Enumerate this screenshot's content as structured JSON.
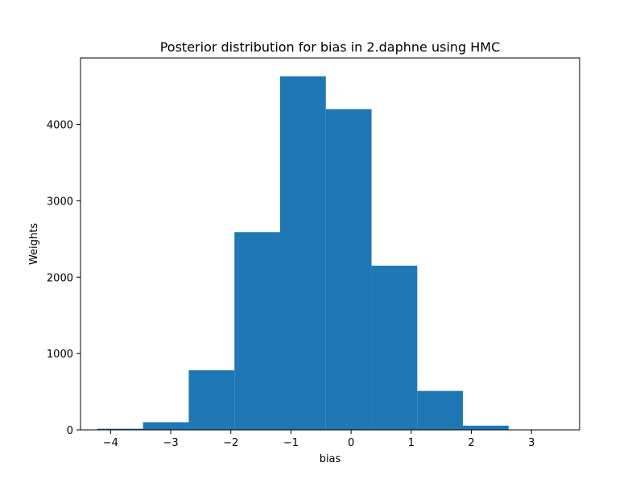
{
  "chart_data": {
    "type": "bar",
    "title": "Posterior distribution for bias in 2.daphne using HMC",
    "xlabel": "bias",
    "ylabel": "Weights",
    "bar_color": "#1f77b4",
    "xlim": [
      -4.5,
      3.8
    ],
    "ylim": [
      0,
      4870
    ],
    "grid": false,
    "bins": [
      {
        "x0": -4.22,
        "x1": -3.46,
        "value": 15
      },
      {
        "x0": -3.46,
        "x1": -2.7,
        "value": 100
      },
      {
        "x0": -2.7,
        "x1": -1.94,
        "value": 780
      },
      {
        "x0": -1.94,
        "x1": -1.18,
        "value": 2590
      },
      {
        "x0": -1.18,
        "x1": -0.42,
        "value": 4630
      },
      {
        "x0": -0.42,
        "x1": 0.34,
        "value": 4200
      },
      {
        "x0": 0.34,
        "x1": 1.1,
        "value": 2150
      },
      {
        "x0": 1.1,
        "x1": 1.86,
        "value": 510
      },
      {
        "x0": 1.86,
        "x1": 2.62,
        "value": 55
      },
      {
        "x0": 2.62,
        "x1": 3.38,
        "value": 5
      }
    ],
    "x_ticks": [
      {
        "value": -4,
        "label": "−4"
      },
      {
        "value": -3,
        "label": "−3"
      },
      {
        "value": -2,
        "label": "−2"
      },
      {
        "value": -1,
        "label": "−1"
      },
      {
        "value": 0,
        "label": "0"
      },
      {
        "value": 1,
        "label": "1"
      },
      {
        "value": 2,
        "label": "2"
      },
      {
        "value": 3,
        "label": "3"
      }
    ],
    "y_ticks": [
      {
        "value": 0,
        "label": "0"
      },
      {
        "value": 1000,
        "label": "1000"
      },
      {
        "value": 2000,
        "label": "2000"
      },
      {
        "value": 3000,
        "label": "3000"
      },
      {
        "value": 4000,
        "label": "4000"
      }
    ]
  }
}
